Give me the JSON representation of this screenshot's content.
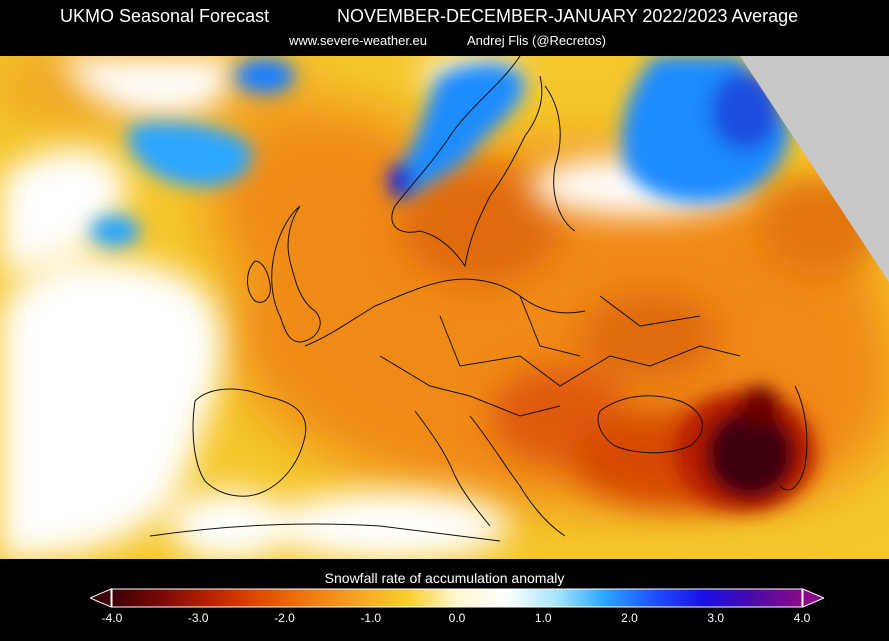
{
  "header": {
    "title_left": "UKMO Seasonal Forecast",
    "title_right": "NOVEMBER-DECEMBER-JANUARY 2022/2023 Average",
    "site": "www.severe-weather.eu",
    "author": "Andrej Flis (@Recretos)"
  },
  "legend": {
    "title": "Snowfall rate of accumulation anomaly",
    "ticks": [
      "-4.0",
      "-3.0",
      "-2.0",
      "-1.0",
      "0.0",
      "1.0",
      "2.0",
      "3.0",
      "4.0"
    ],
    "range": [
      -4.0,
      4.0
    ],
    "colors": [
      "#3a0006",
      "#7a0a06",
      "#b82200",
      "#e24a00",
      "#f07a10",
      "#f5a425",
      "#f7cf2a",
      "#fff8d0",
      "#ffffff",
      "#a7e6ff",
      "#2aa6ff",
      "#1f50ff",
      "#1a10e8",
      "#4a0aa8",
      "#8a0a8a"
    ]
  },
  "map": {
    "colors": {
      "ocean_neutral": "#ffffff",
      "yellow": "#f5c72d",
      "orange": "#f08a15",
      "dark_orange": "#d64a06",
      "red": "#b51a06",
      "maroon": "#3d0208",
      "blue": "#1a8cff",
      "light_blue": "#7fd8ff",
      "no_data": "#c8c8c8"
    }
  }
}
